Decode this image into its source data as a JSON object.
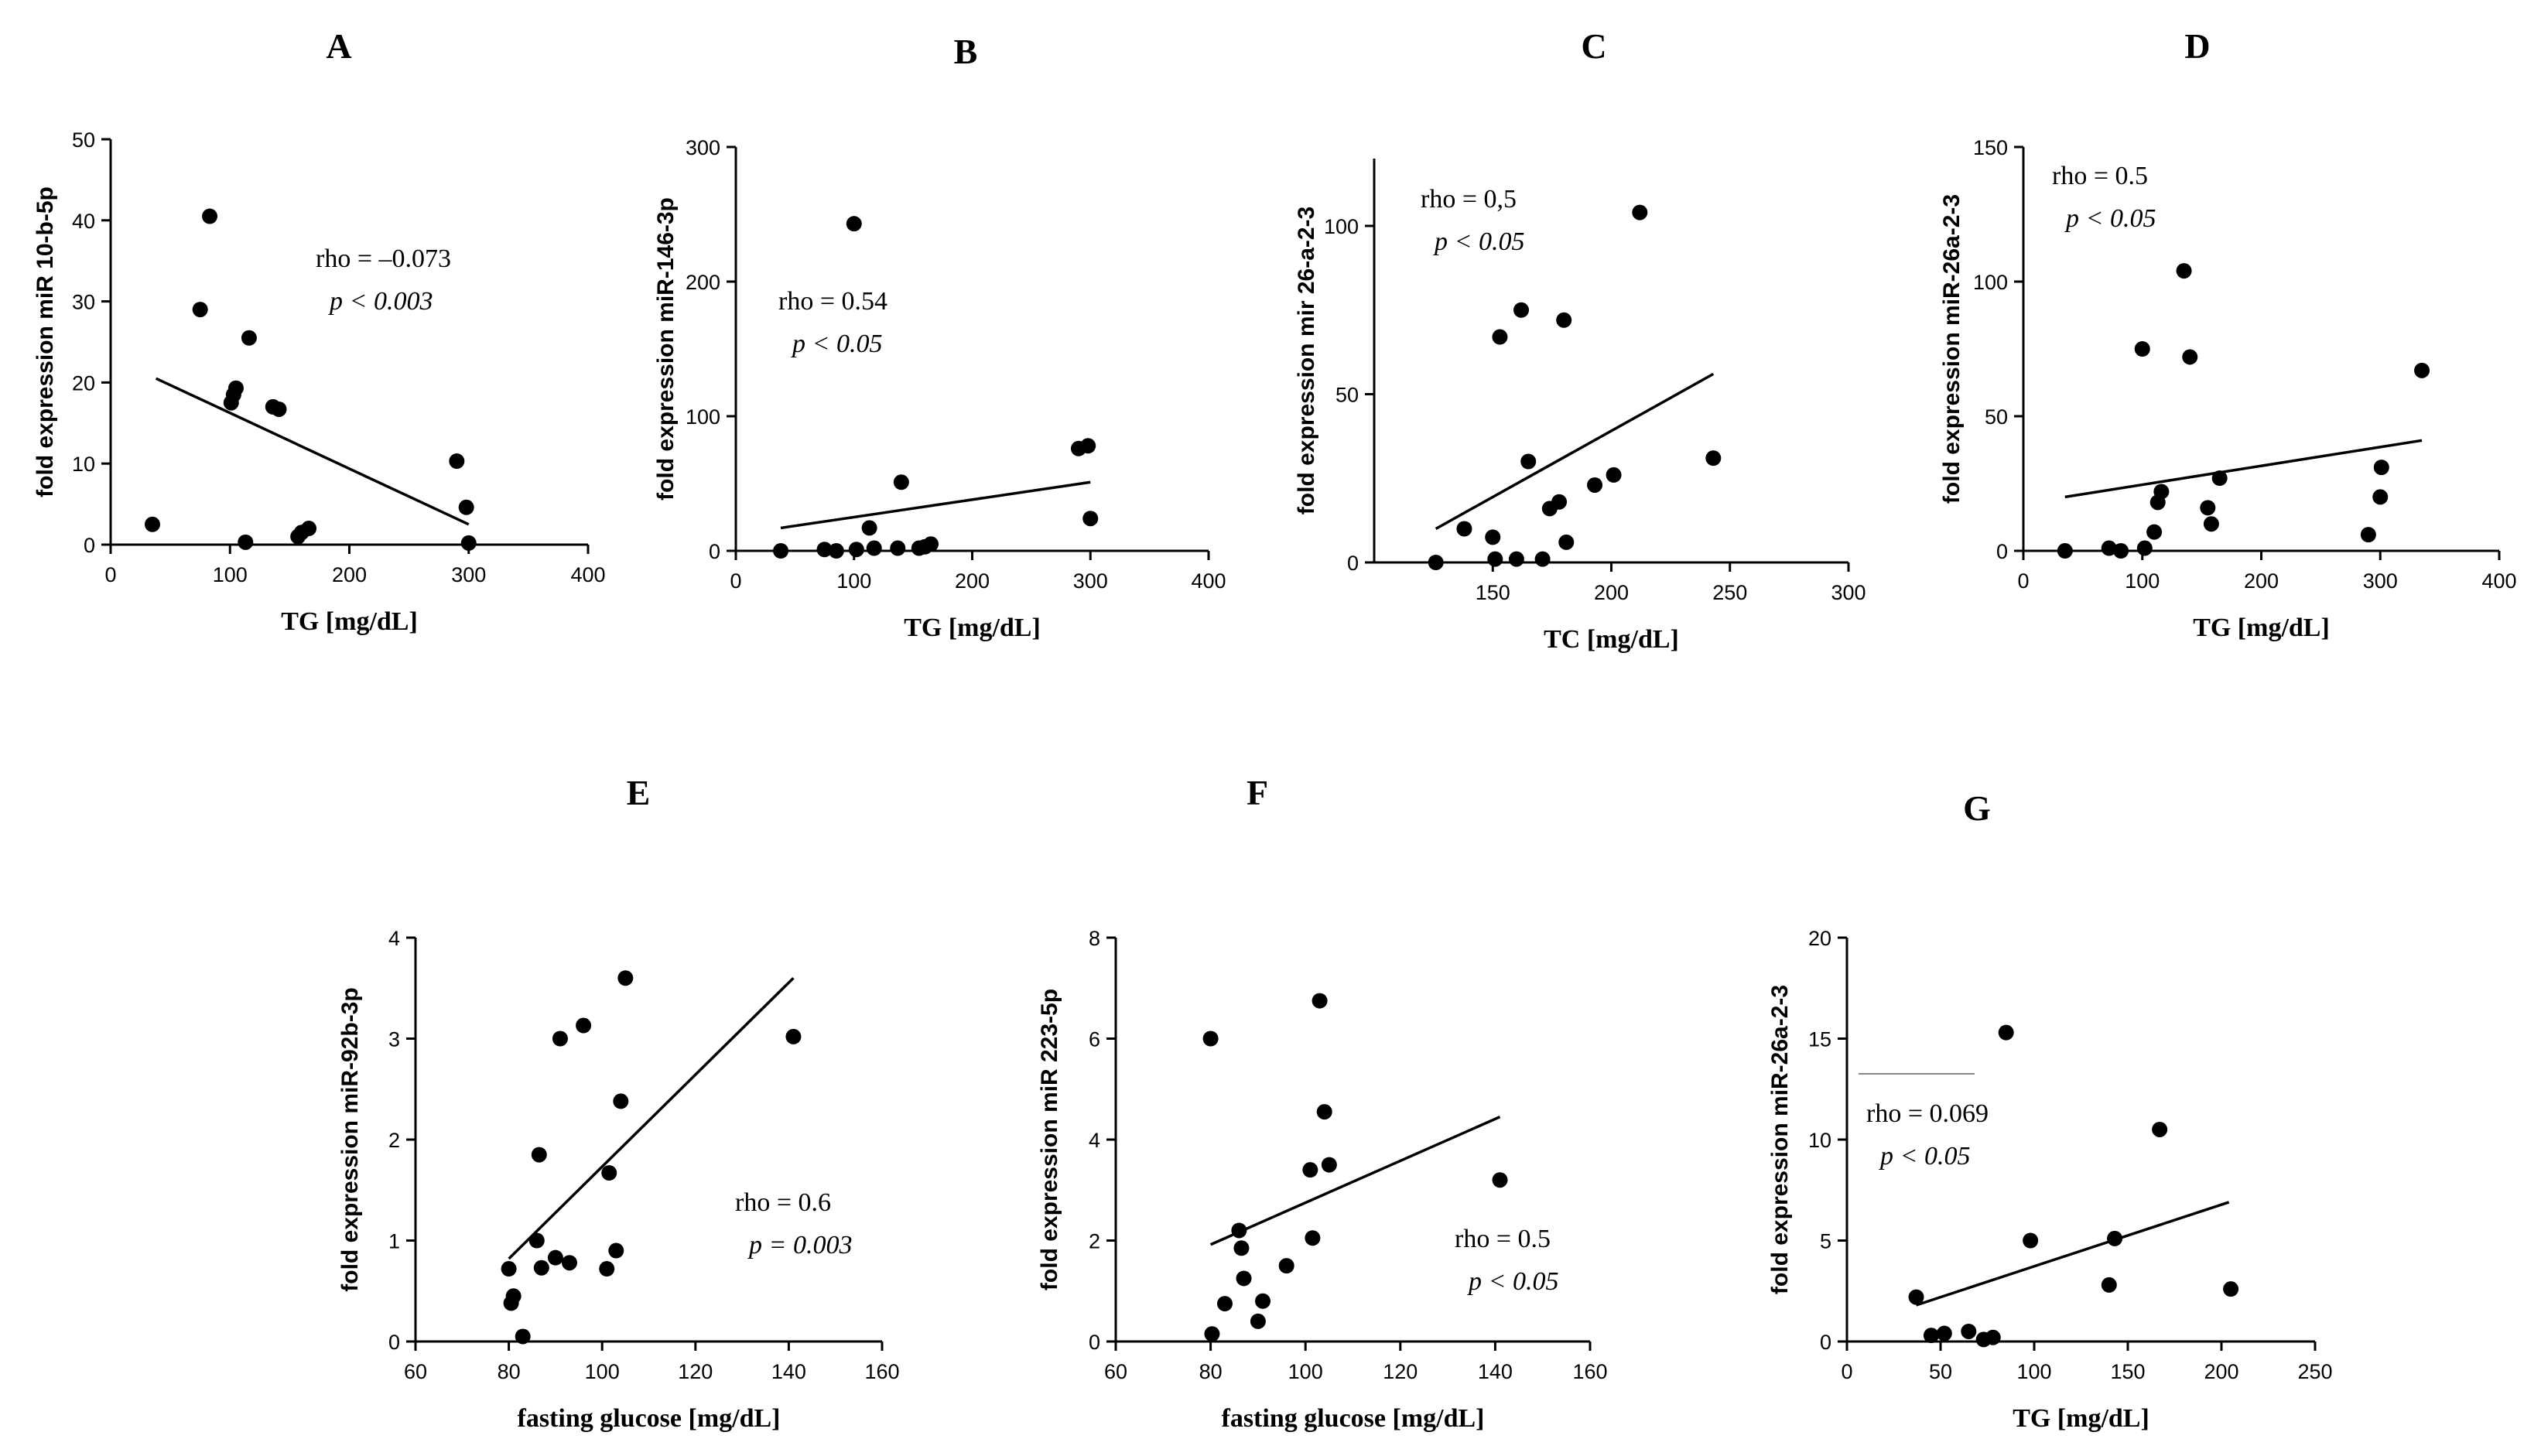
{
  "chart_data": [
    {
      "panel": "A",
      "type": "scatter",
      "xlabel": "TG [mg/dL]",
      "ylabel": "fold expression miR 10-b-5p",
      "xlim": [
        0,
        400
      ],
      "ylim": [
        0,
        50
      ],
      "xticks": [
        "0",
        "100",
        "200",
        "300",
        "400"
      ],
      "yticks": [
        "0",
        "10",
        "20",
        "30",
        "40",
        "50"
      ],
      "x": [
        35,
        75,
        83,
        101,
        103,
        105,
        113,
        116,
        136,
        141,
        157,
        160,
        166,
        290,
        298,
        300
      ],
      "y": [
        2.5,
        29,
        40.5,
        17.5,
        18.5,
        19.3,
        0.3,
        25.5,
        17,
        16.7,
        1,
        1.5,
        2,
        10.3,
        4.6,
        0.2
      ],
      "fit": [
        [
          38,
          20.5
        ],
        [
          300,
          2.5
        ]
      ],
      "annotation": {
        "rho": "rho = –0.073",
        "p": "p < 0.003"
      }
    },
    {
      "panel": "B",
      "type": "scatter",
      "xlabel": "TG [mg/dL]",
      "ylabel": "fold expression miR-146-3p",
      "xlim": [
        0,
        400
      ],
      "ylim": [
        0,
        300
      ],
      "xticks": [
        "0",
        "100",
        "200",
        "300",
        "400"
      ],
      "yticks": [
        "0",
        "100",
        "200",
        "300"
      ],
      "x": [
        38,
        75,
        85,
        100,
        102,
        113,
        117,
        137,
        140,
        155,
        160,
        165,
        290,
        298,
        300
      ],
      "y": [
        0,
        1,
        0,
        243,
        1,
        17,
        2,
        2,
        51,
        2,
        3,
        5,
        76,
        78,
        24
      ],
      "fit": [
        [
          38,
          17
        ],
        [
          300,
          51
        ]
      ],
      "annotation": {
        "rho": "rho = 0.54",
        "p": "p < 0.05"
      }
    },
    {
      "panel": "C",
      "type": "scatter",
      "xlabel": "TC [mg/dL]",
      "ylabel": "fold expression mir 26-a-2-3",
      "xlim": [
        100,
        300
      ],
      "ylim": [
        0,
        120
      ],
      "xticks": [
        "150",
        "200",
        "250",
        "300"
      ],
      "yticks": [
        "0",
        "50",
        "100"
      ],
      "x": [
        126,
        138,
        150,
        151,
        153,
        160,
        162,
        165,
        171,
        174,
        178,
        180,
        181,
        193,
        201,
        212,
        243
      ],
      "y": [
        0,
        10,
        7.5,
        1,
        67,
        1,
        75,
        30,
        1,
        16,
        18,
        72,
        6,
        23,
        26,
        104,
        31
      ],
      "fit": [
        [
          126,
          10
        ],
        [
          243,
          56
        ]
      ],
      "annotation": {
        "rho": "rho = 0,5",
        "p": "p < 0.05"
      }
    },
    {
      "panel": "D",
      "type": "scatter",
      "xlabel": "TG [mg/dL]",
      "ylabel": "fold expression miR-26a-2-3",
      "xlim": [
        0,
        400
      ],
      "ylim": [
        0,
        150
      ],
      "xticks": [
        "0",
        "100",
        "200",
        "300",
        "400"
      ],
      "yticks": [
        "0",
        "50",
        "100",
        "150"
      ],
      "x": [
        35,
        72,
        82,
        100,
        102,
        110,
        116,
        113,
        135,
        140,
        155,
        158,
        165,
        290,
        300,
        301,
        335
      ],
      "y": [
        0,
        1,
        0,
        75,
        1,
        7,
        22,
        18,
        104,
        72,
        16,
        10,
        27,
        6,
        20,
        31,
        67
      ],
      "fit": [
        [
          35,
          20
        ],
        [
          335,
          41
        ]
      ],
      "annotation": {
        "rho": "rho = 0.5",
        "p": "p < 0.05"
      }
    },
    {
      "panel": "E",
      "type": "scatter",
      "xlabel": "fasting glucose [mg/dL]",
      "ylabel": "fold expression miR-92b-3p",
      "xlim": [
        60,
        160
      ],
      "ylim": [
        0,
        4
      ],
      "xticks": [
        "60",
        "80",
        "100",
        "120",
        "140",
        "160"
      ],
      "yticks": [
        "0",
        "1",
        "2",
        "3",
        "4"
      ],
      "x": [
        80,
        80.5,
        81,
        83,
        86,
        86.5,
        87,
        90,
        91,
        93,
        96,
        101,
        101.5,
        103,
        104,
        105,
        141
      ],
      "y": [
        0.72,
        0.38,
        0.45,
        0.05,
        1.0,
        1.85,
        0.73,
        0.83,
        3.0,
        0.78,
        3.13,
        0.72,
        1.67,
        0.9,
        2.38,
        3.6,
        3.02
      ],
      "fit": [
        [
          80,
          0.82
        ],
        [
          141,
          3.6
        ]
      ],
      "annotation": {
        "rho": "rho = 0.6",
        "p": "p = 0.003"
      }
    },
    {
      "panel": "F",
      "type": "scatter",
      "xlabel": "fasting glucose [mg/dL]",
      "ylabel": "fold expression miR 223-5p",
      "xlim": [
        60,
        160
      ],
      "ylim": [
        0,
        8
      ],
      "xticks": [
        "60",
        "80",
        "100",
        "120",
        "140",
        "160"
      ],
      "yticks": [
        "0",
        "2",
        "4",
        "6",
        "8"
      ],
      "x": [
        80,
        80.3,
        83,
        86,
        86.5,
        87,
        90,
        91,
        96,
        101,
        101.5,
        103,
        104,
        105,
        141
      ],
      "y": [
        6.0,
        0.15,
        0.75,
        2.2,
        1.85,
        1.25,
        0.4,
        0.8,
        1.5,
        3.4,
        2.05,
        6.75,
        4.55,
        3.5,
        3.2
      ],
      "fit": [
        [
          80,
          1.92
        ],
        [
          141,
          4.45
        ]
      ],
      "annotation": {
        "rho": "rho = 0.5",
        "p": "p < 0.05"
      }
    },
    {
      "panel": "G",
      "type": "scatter",
      "xlabel": "TG [mg/dL]",
      "ylabel": "fold expression miR-26a-2-3",
      "xlim": [
        0,
        250
      ],
      "ylim": [
        0,
        20
      ],
      "xticks": [
        "0",
        "50",
        "100",
        "150",
        "200",
        "250"
      ],
      "yticks": [
        "0",
        "5",
        "10",
        "15",
        "20"
      ],
      "x": [
        37,
        45,
        52,
        65,
        73,
        78,
        85,
        98,
        140,
        143,
        167,
        205
      ],
      "y": [
        2.2,
        0.3,
        0.4,
        0.5,
        0.1,
        0.2,
        15.3,
        5.0,
        2.8,
        5.1,
        10.5,
        2.6
      ],
      "fit": [
        [
          37,
          1.8
        ],
        [
          204,
          6.9
        ]
      ],
      "annotation": {
        "rho": "rho = 0.069",
        "p": "p < 0.05"
      }
    }
  ]
}
